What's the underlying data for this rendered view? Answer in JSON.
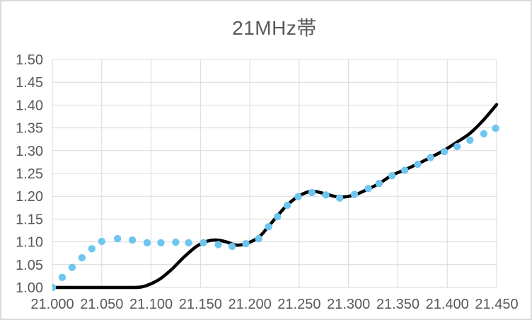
{
  "colors": {
    "title_text": "#595959",
    "tick_text": "#595959",
    "gridline": "#D9D9D9",
    "background": "#FFFFFF",
    "frame_border": "#D9D9D9",
    "line_series": "#000000",
    "marker_series": "#6EC6F0"
  },
  "chart_data": {
    "type": "line",
    "title": "21MHz帯",
    "xlabel": "",
    "ylabel": "",
    "xlim": [
      21.0,
      21.45
    ],
    "ylim": [
      1.0,
      1.5
    ],
    "grid": true,
    "legend": "none",
    "x_tick_labels": [
      "21.000",
      "21.050",
      "21.100",
      "21.150",
      "21.200",
      "21.250",
      "21.300",
      "21.350",
      "21.400",
      "21.450"
    ],
    "y_tick_labels": [
      "1.00",
      "1.05",
      "1.10",
      "1.15",
      "1.20",
      "1.25",
      "1.30",
      "1.35",
      "1.40",
      "1.45",
      "1.50"
    ],
    "series": [
      {
        "id": "smooth-line",
        "type": "line",
        "color": "#000000",
        "stroke_width": 4.5,
        "points": [
          [
            21.0,
            1.0
          ],
          [
            21.02,
            1.0
          ],
          [
            21.04,
            1.0
          ],
          [
            21.06,
            1.0
          ],
          [
            21.08,
            1.0
          ],
          [
            21.09,
            1.001
          ],
          [
            21.1,
            1.008
          ],
          [
            21.11,
            1.02
          ],
          [
            21.122,
            1.042
          ],
          [
            21.134,
            1.068
          ],
          [
            21.146,
            1.09
          ],
          [
            21.156,
            1.101
          ],
          [
            21.166,
            1.104
          ],
          [
            21.176,
            1.1
          ],
          [
            21.186,
            1.093
          ],
          [
            21.196,
            1.096
          ],
          [
            21.209,
            1.11
          ],
          [
            21.219,
            1.134
          ],
          [
            21.228,
            1.157
          ],
          [
            21.238,
            1.181
          ],
          [
            21.25,
            1.201
          ],
          [
            21.263,
            1.211
          ],
          [
            21.277,
            1.205
          ],
          [
            21.291,
            1.198
          ],
          [
            21.306,
            1.203
          ],
          [
            21.32,
            1.216
          ],
          [
            21.331,
            1.228
          ],
          [
            21.344,
            1.246
          ],
          [
            21.357,
            1.258
          ],
          [
            21.37,
            1.271
          ],
          [
            21.383,
            1.285
          ],
          [
            21.397,
            1.301
          ],
          [
            21.41,
            1.319
          ],
          [
            21.423,
            1.338
          ],
          [
            21.437,
            1.368
          ],
          [
            21.45,
            1.401
          ]
        ]
      },
      {
        "id": "measured-markers",
        "type": "scatter",
        "color": "#6EC6F0",
        "marker_radius": 5.2,
        "points": [
          [
            21.0,
            1.0
          ],
          [
            21.01,
            1.022
          ],
          [
            21.02,
            1.044
          ],
          [
            21.03,
            1.065
          ],
          [
            21.04,
            1.085
          ],
          [
            21.05,
            1.101
          ],
          [
            21.066,
            1.107
          ],
          [
            21.081,
            1.104
          ],
          [
            21.096,
            1.098
          ],
          [
            21.11,
            1.098
          ],
          [
            21.125,
            1.099
          ],
          [
            21.138,
            1.098
          ],
          [
            21.153,
            1.098
          ],
          [
            21.168,
            1.094
          ],
          [
            21.182,
            1.09
          ],
          [
            21.196,
            1.096
          ],
          [
            21.209,
            1.107
          ],
          [
            21.219,
            1.133
          ],
          [
            21.228,
            1.155
          ],
          [
            21.238,
            1.18
          ],
          [
            21.249,
            1.199
          ],
          [
            21.263,
            1.208
          ],
          [
            21.277,
            1.203
          ],
          [
            21.291,
            1.196
          ],
          [
            21.306,
            1.204
          ],
          [
            21.32,
            1.217
          ],
          [
            21.331,
            1.228
          ],
          [
            21.344,
            1.245
          ],
          [
            21.357,
            1.257
          ],
          [
            21.37,
            1.27
          ],
          [
            21.383,
            1.285
          ],
          [
            21.397,
            1.298
          ],
          [
            21.41,
            1.309
          ],
          [
            21.423,
            1.323
          ],
          [
            21.437,
            1.337
          ],
          [
            21.449,
            1.349
          ]
        ]
      }
    ]
  }
}
